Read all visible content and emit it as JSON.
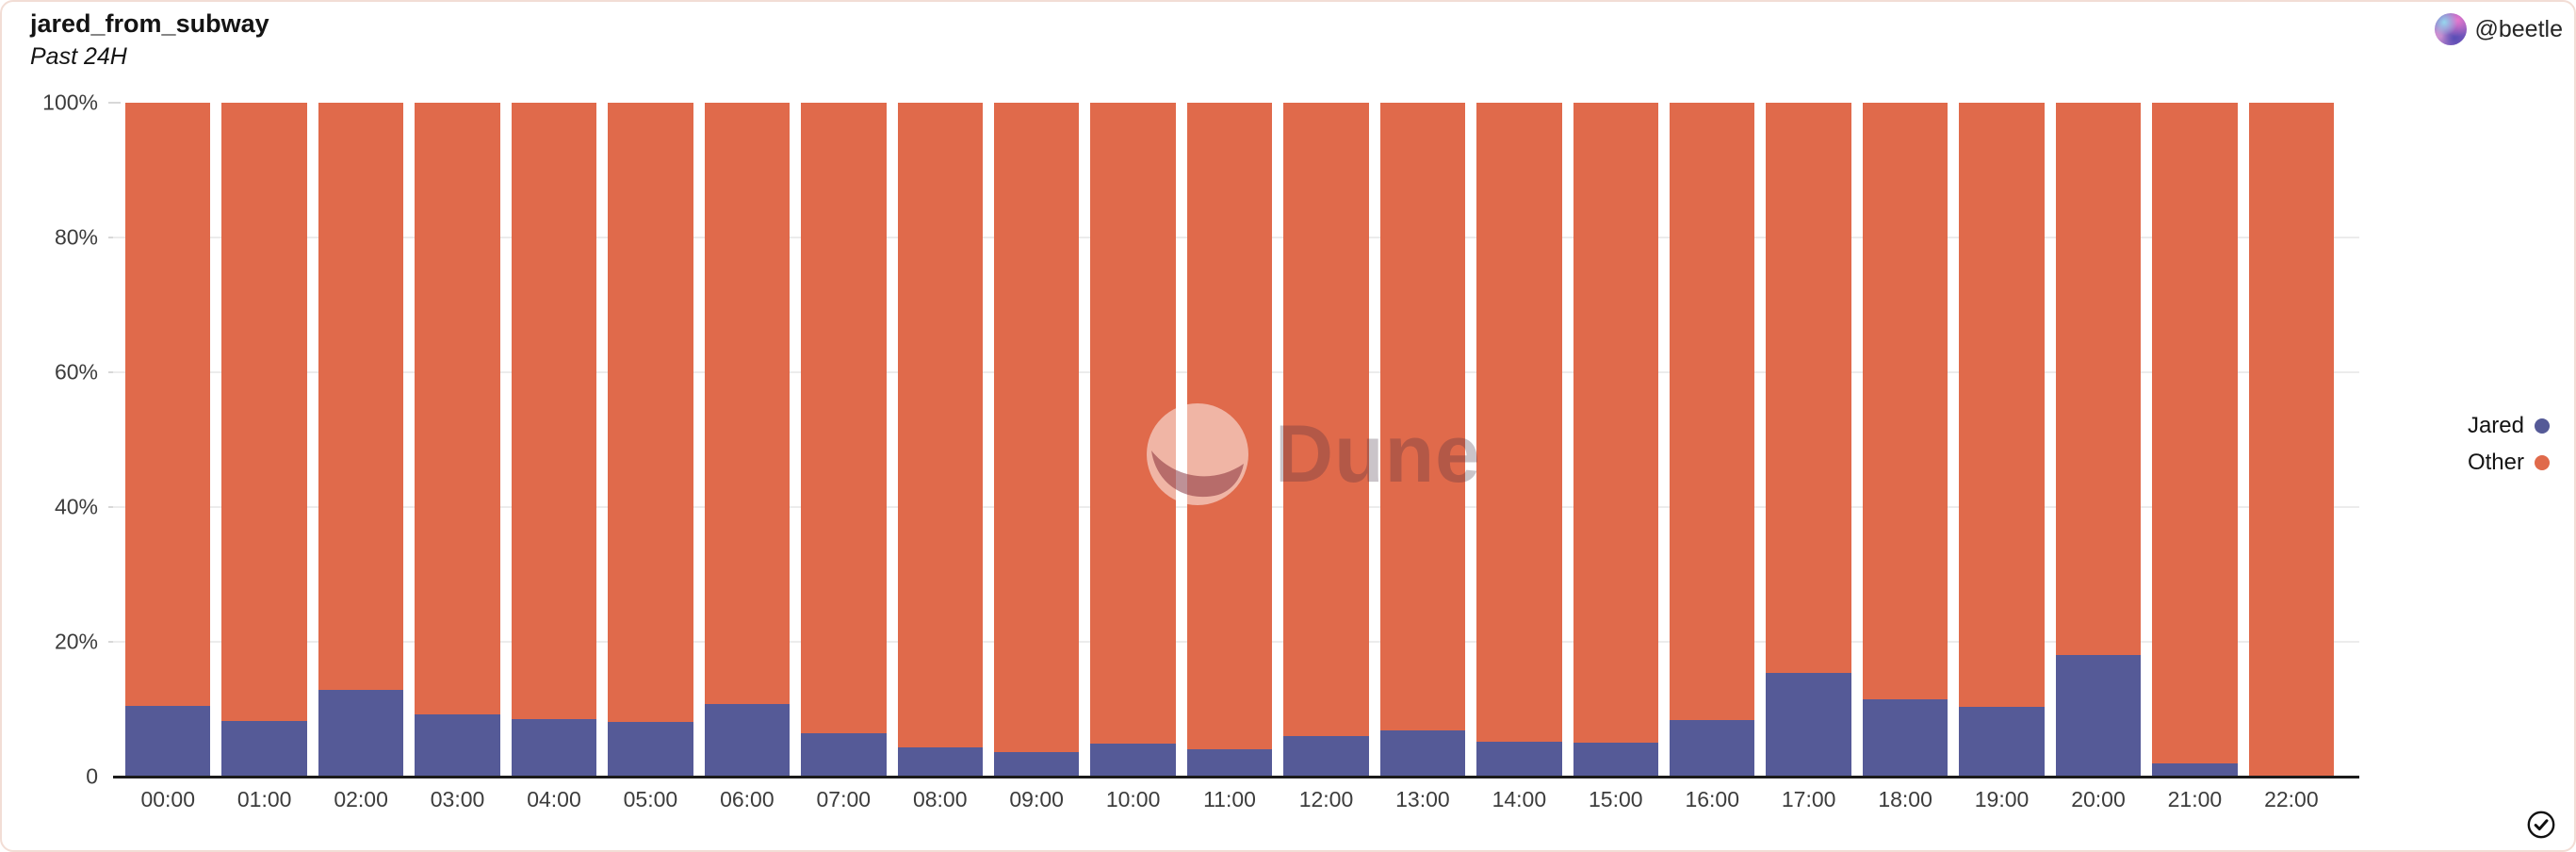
{
  "card": {
    "title": "jared_from_subway",
    "subtitle": "Past 24H",
    "author": "@beetle",
    "watermark": "Dune"
  },
  "legend": [
    {
      "label": "Jared",
      "color": "#555A97"
    },
    {
      "label": "Other",
      "color": "#E06A4B"
    }
  ],
  "colors": {
    "jared": "#555A97",
    "other": "#E06A4B",
    "axis_line": "#1b1b1b",
    "grid_line": "#ececec",
    "tick_label": "#3c3c3c",
    "card_border": "#f2ddd5"
  },
  "chart_data": {
    "type": "bar",
    "stacked": true,
    "normalized_percent": true,
    "title": "jared_from_subway",
    "subtitle": "Past 24H",
    "xlabel": "",
    "ylabel": "",
    "ylim": [
      0,
      100
    ],
    "grid": "horizontal-faint",
    "grid_values": [
      20,
      40,
      60,
      80
    ],
    "y_ticks": [
      {
        "label": "100%",
        "value": 100
      },
      {
        "label": "80%",
        "value": 80
      },
      {
        "label": "60%",
        "value": 60
      },
      {
        "label": "40%",
        "value": 40
      },
      {
        "label": "20%",
        "value": 20
      },
      {
        "label": "0",
        "value": 0
      }
    ],
    "legend_position": "right",
    "categories": [
      "00:00",
      "01:00",
      "02:00",
      "03:00",
      "04:00",
      "05:00",
      "06:00",
      "07:00",
      "08:00",
      "09:00",
      "10:00",
      "11:00",
      "12:00",
      "13:00",
      "14:00",
      "15:00",
      "16:00",
      "17:00",
      "18:00",
      "19:00",
      "20:00",
      "21:00",
      "22:00"
    ],
    "series": [
      {
        "name": "Jared",
        "color": "#555A97",
        "values": [
          10.5,
          8.2,
          12.8,
          9.3,
          8.6,
          8.1,
          10.8,
          6.4,
          4.4,
          3.7,
          4.9,
          4.1,
          6.0,
          6.9,
          5.2,
          5.1,
          8.4,
          15.4,
          11.5,
          10.3,
          18.0,
          2.0,
          0.0
        ]
      },
      {
        "name": "Other",
        "color": "#E06A4B",
        "values": [
          89.5,
          91.8,
          87.2,
          90.7,
          91.4,
          91.9,
          89.2,
          93.6,
          95.6,
          96.3,
          95.1,
          95.9,
          94.0,
          93.1,
          94.8,
          94.9,
          91.6,
          84.6,
          88.5,
          89.7,
          82.0,
          98.0,
          100.0
        ]
      }
    ]
  }
}
